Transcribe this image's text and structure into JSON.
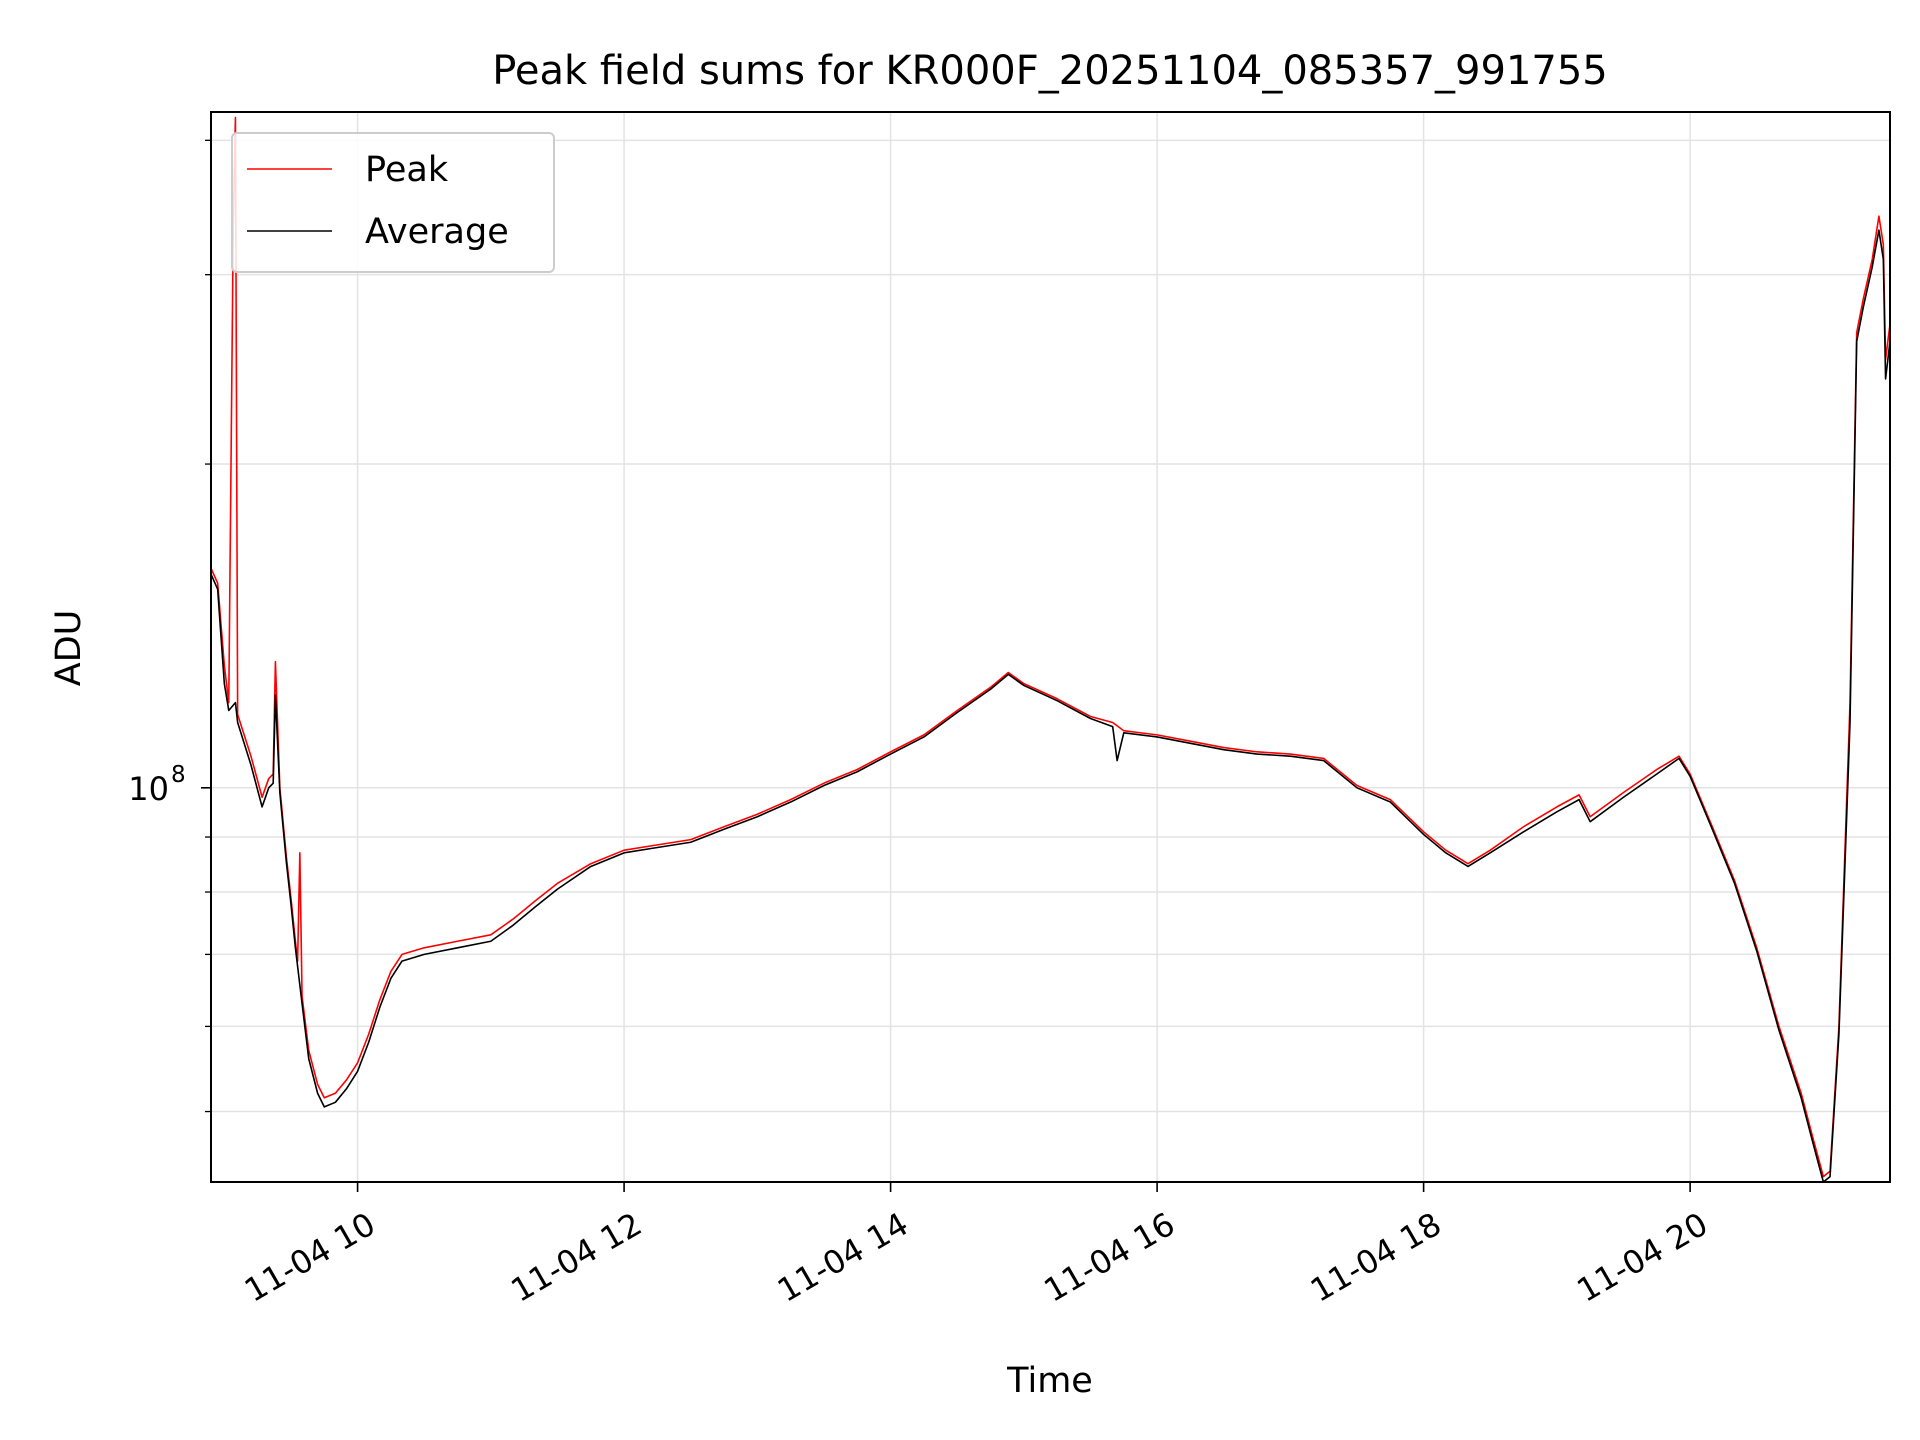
{
  "chart_data": {
    "type": "line",
    "title": "Peak field sums for KR000F_20251104_085357_991755",
    "xlabel": "Time",
    "ylabel": "ADU",
    "yscale": "log",
    "ylim": [
      43000000.0,
      425000000.0
    ],
    "xlim": [
      "2025-11-04 08:54",
      "2025-11-04 21:30"
    ],
    "grid": true,
    "legend": {
      "placement": "top-left",
      "entries": [
        "Peak",
        "Average"
      ]
    },
    "x_ticks": [
      {
        "value": "2025-11-04 10:00",
        "label": "11-04 10"
      },
      {
        "value": "2025-11-04 12:00",
        "label": "11-04 12"
      },
      {
        "value": "2025-11-04 14:00",
        "label": "11-04 14"
      },
      {
        "value": "2025-11-04 16:00",
        "label": "11-04 16"
      },
      {
        "value": "2025-11-04 18:00",
        "label": "11-04 18"
      },
      {
        "value": "2025-11-04 20:00",
        "label": "11-04 20"
      }
    ],
    "y_major_ticks": [
      {
        "value": 100000000,
        "label": "10",
        "exponent": "8"
      }
    ],
    "y_minor_ticks": [
      50000000,
      60000000,
      70000000,
      80000000,
      90000000,
      200000000,
      300000000,
      400000000
    ],
    "series": [
      {
        "name": "Peak",
        "color": "#ff0000",
        "points": [
          [
            "2025-11-04 08:54",
            160000000.0
          ],
          [
            "2025-11-04 08:57",
            155000000.0
          ],
          [
            "2025-11-04 09:00",
            130000000.0
          ],
          [
            "2025-11-04 09:02",
            120000000.0
          ],
          [
            "2025-11-04 09:04",
            330000000.0
          ],
          [
            "2025-11-04 09:05",
            420000000.0
          ],
          [
            "2025-11-04 09:06",
            117000000.0
          ],
          [
            "2025-11-04 09:12",
            107000000.0
          ],
          [
            "2025-11-04 09:17",
            98000000.0
          ],
          [
            "2025-11-04 09:20",
            102000000.0
          ],
          [
            "2025-11-04 09:22",
            103000000.0
          ],
          [
            "2025-11-04 09:23",
            131000000.0
          ],
          [
            "2025-11-04 09:25",
            100000000.0
          ],
          [
            "2025-11-04 09:28",
            86000000.0
          ],
          [
            "2025-11-04 09:30",
            79000000.0
          ],
          [
            "2025-11-04 09:32",
            72000000.0
          ],
          [
            "2025-11-04 09:33",
            69000000.0
          ],
          [
            "2025-11-04 09:34",
            87000000.0
          ],
          [
            "2025-11-04 09:35",
            64000000.0
          ],
          [
            "2025-11-04 09:38",
            57000000.0
          ],
          [
            "2025-11-04 09:42",
            53000000.0
          ],
          [
            "2025-11-04 09:45",
            51500000.0
          ],
          [
            "2025-11-04 09:50",
            52000000.0
          ],
          [
            "2025-11-04 09:55",
            53500000.0
          ],
          [
            "2025-11-04 10:00",
            55500000.0
          ],
          [
            "2025-11-04 10:05",
            59000000.0
          ],
          [
            "2025-11-04 10:10",
            63500000.0
          ],
          [
            "2025-11-04 10:15",
            67500000.0
          ],
          [
            "2025-11-04 10:20",
            70000000.0
          ],
          [
            "2025-11-04 10:30",
            71000000.0
          ],
          [
            "2025-11-04 10:45",
            72000000.0
          ],
          [
            "2025-11-04 11:00",
            73000000.0
          ],
          [
            "2025-11-04 11:10",
            75500000.0
          ],
          [
            "2025-11-04 11:20",
            78500000.0
          ],
          [
            "2025-11-04 11:30",
            81500000.0
          ],
          [
            "2025-11-04 11:45",
            85000000.0
          ],
          [
            "2025-11-04 12:00",
            87500000.0
          ],
          [
            "2025-11-04 12:15",
            88500000.0
          ],
          [
            "2025-11-04 12:30",
            89500000.0
          ],
          [
            "2025-11-04 12:45",
            92000000.0
          ],
          [
            "2025-11-04 13:00",
            94500000.0
          ],
          [
            "2025-11-04 13:15",
            97500000.0
          ],
          [
            "2025-11-04 13:30",
            101000000.0
          ],
          [
            "2025-11-04 13:45",
            104000000.0
          ],
          [
            "2025-11-04 14:00",
            108000000.0
          ],
          [
            "2025-11-04 14:15",
            112000000.0
          ],
          [
            "2025-11-04 14:30",
            118000000.0
          ],
          [
            "2025-11-04 14:45",
            124000000.0
          ],
          [
            "2025-11-04 14:53",
            128000000.0
          ],
          [
            "2025-11-04 15:00",
            125000000.0
          ],
          [
            "2025-11-04 15:15",
            121000000.0
          ],
          [
            "2025-11-04 15:30",
            116500000.0
          ],
          [
            "2025-11-04 15:40",
            115000000.0
          ],
          [
            "2025-11-04 15:45",
            113000000.0
          ],
          [
            "2025-11-04 16:00",
            112000000.0
          ],
          [
            "2025-11-04 16:15",
            110500000.0
          ],
          [
            "2025-11-04 16:30",
            109000000.0
          ],
          [
            "2025-11-04 16:45",
            108000000.0
          ],
          [
            "2025-11-04 17:00",
            107500000.0
          ],
          [
            "2025-11-04 17:15",
            106500000.0
          ],
          [
            "2025-11-04 17:30",
            100500000.0
          ],
          [
            "2025-11-04 17:45",
            97500000.0
          ],
          [
            "2025-11-04 18:00",
            91000000.0
          ],
          [
            "2025-11-04 18:10",
            87500000.0
          ],
          [
            "2025-11-04 18:20",
            85000000.0
          ],
          [
            "2025-11-04 18:30",
            87500000.0
          ],
          [
            "2025-11-04 18:45",
            92000000.0
          ],
          [
            "2025-11-04 19:00",
            96000000.0
          ],
          [
            "2025-11-04 19:10",
            98500000.0
          ],
          [
            "2025-11-04 19:15",
            94000000.0
          ],
          [
            "2025-11-04 19:30",
            99000000.0
          ],
          [
            "2025-11-04 19:45",
            104000000.0
          ],
          [
            "2025-11-04 19:55",
            107000000.0
          ],
          [
            "2025-11-04 20:00",
            103000000.0
          ],
          [
            "2025-11-04 20:10",
            92000000.0
          ],
          [
            "2025-11-04 20:20",
            82000000.0
          ],
          [
            "2025-11-04 20:30",
            71000000.0
          ],
          [
            "2025-11-04 20:40",
            60000000.0
          ],
          [
            "2025-11-04 20:50",
            52000000.0
          ],
          [
            "2025-11-04 20:55",
            47500000.0
          ],
          [
            "2025-11-04 21:00",
            43500000.0
          ],
          [
            "2025-11-04 21:03",
            44000000.0
          ],
          [
            "2025-11-04 21:07",
            60000000.0
          ],
          [
            "2025-11-04 21:12",
            120000000.0
          ],
          [
            "2025-11-04 21:15",
            265000000.0
          ],
          [
            "2025-11-04 21:18",
            285000000.0
          ],
          [
            "2025-11-04 21:22",
            310000000.0
          ],
          [
            "2025-11-04 21:25",
            340000000.0
          ],
          [
            "2025-11-04 21:27",
            320000000.0
          ],
          [
            "2025-11-04 21:28",
            250000000.0
          ],
          [
            "2025-11-04 21:30",
            270000000.0
          ]
        ]
      },
      {
        "name": "Average",
        "color": "#000000",
        "points": [
          [
            "2025-11-04 08:54",
            158000000.0
          ],
          [
            "2025-11-04 08:57",
            153000000.0
          ],
          [
            "2025-11-04 09:00",
            125000000.0
          ],
          [
            "2025-11-04 09:02",
            118000000.0
          ],
          [
            "2025-11-04 09:05",
            120000000.0
          ],
          [
            "2025-11-04 09:06",
            115000000.0
          ],
          [
            "2025-11-04 09:12",
            105000000.0
          ],
          [
            "2025-11-04 09:17",
            96000000.0
          ],
          [
            "2025-11-04 09:20",
            100000000.0
          ],
          [
            "2025-11-04 09:22",
            101000000.0
          ],
          [
            "2025-11-04 09:23",
            122000000.0
          ],
          [
            "2025-11-04 09:25",
            99000000.0
          ],
          [
            "2025-11-04 09:28",
            85000000.0
          ],
          [
            "2025-11-04 09:30",
            78000000.0
          ],
          [
            "2025-11-04 09:32",
            71000000.0
          ],
          [
            "2025-11-04 09:35",
            63000000.0
          ],
          [
            "2025-11-04 09:38",
            56000000.0
          ],
          [
            "2025-11-04 09:42",
            52000000.0
          ],
          [
            "2025-11-04 09:45",
            50500000.0
          ],
          [
            "2025-11-04 09:50",
            51000000.0
          ],
          [
            "2025-11-04 09:55",
            52500000.0
          ],
          [
            "2025-11-04 10:00",
            54500000.0
          ],
          [
            "2025-11-04 10:05",
            58000000.0
          ],
          [
            "2025-11-04 10:10",
            62500000.0
          ],
          [
            "2025-11-04 10:15",
            66500000.0
          ],
          [
            "2025-11-04 10:20",
            69000000.0
          ],
          [
            "2025-11-04 10:30",
            70000000.0
          ],
          [
            "2025-11-04 10:45",
            71000000.0
          ],
          [
            "2025-11-04 11:00",
            72000000.0
          ],
          [
            "2025-11-04 11:10",
            74500000.0
          ],
          [
            "2025-11-04 11:20",
            77500000.0
          ],
          [
            "2025-11-04 11:30",
            80500000.0
          ],
          [
            "2025-11-04 11:45",
            84500000.0
          ],
          [
            "2025-11-04 12:00",
            87000000.0
          ],
          [
            "2025-11-04 12:15",
            88000000.0
          ],
          [
            "2025-11-04 12:30",
            89000000.0
          ],
          [
            "2025-11-04 12:45",
            91500000.0
          ],
          [
            "2025-11-04 13:00",
            94000000.0
          ],
          [
            "2025-11-04 13:15",
            97000000.0
          ],
          [
            "2025-11-04 13:30",
            100500000.0
          ],
          [
            "2025-11-04 13:45",
            103500000.0
          ],
          [
            "2025-11-04 14:00",
            107500000.0
          ],
          [
            "2025-11-04 14:15",
            111500000.0
          ],
          [
            "2025-11-04 14:30",
            117500000.0
          ],
          [
            "2025-11-04 14:45",
            123500000.0
          ],
          [
            "2025-11-04 14:53",
            127500000.0
          ],
          [
            "2025-11-04 15:00",
            124500000.0
          ],
          [
            "2025-11-04 15:15",
            120500000.0
          ],
          [
            "2025-11-04 15:30",
            116000000.0
          ],
          [
            "2025-11-04 15:40",
            114000000.0
          ],
          [
            "2025-11-04 15:42",
            106000000.0
          ],
          [
            "2025-11-04 15:45",
            112500000.0
          ],
          [
            "2025-11-04 16:00",
            111500000.0
          ],
          [
            "2025-11-04 16:15",
            110000000.0
          ],
          [
            "2025-11-04 16:30",
            108500000.0
          ],
          [
            "2025-11-04 16:45",
            107500000.0
          ],
          [
            "2025-11-04 17:00",
            107000000.0
          ],
          [
            "2025-11-04 17:15",
            106000000.0
          ],
          [
            "2025-11-04 17:30",
            100000000.0
          ],
          [
            "2025-11-04 17:45",
            97000000.0
          ],
          [
            "2025-11-04 18:00",
            90500000.0
          ],
          [
            "2025-11-04 18:10",
            87000000.0
          ],
          [
            "2025-11-04 18:20",
            84500000.0
          ],
          [
            "2025-11-04 18:30",
            87000000.0
          ],
          [
            "2025-11-04 18:45",
            91000000.0
          ],
          [
            "2025-11-04 19:00",
            95000000.0
          ],
          [
            "2025-11-04 19:10",
            97500000.0
          ],
          [
            "2025-11-04 19:15",
            93000000.0
          ],
          [
            "2025-11-04 19:30",
            98000000.0
          ],
          [
            "2025-11-04 19:45",
            103000000.0
          ],
          [
            "2025-11-04 19:55",
            106500000.0
          ],
          [
            "2025-11-04 20:00",
            102500000.0
          ],
          [
            "2025-11-04 20:10",
            91500000.0
          ],
          [
            "2025-11-04 20:20",
            81500000.0
          ],
          [
            "2025-11-04 20:30",
            70500000.0
          ],
          [
            "2025-11-04 20:40",
            59500000.0
          ],
          [
            "2025-11-04 20:50",
            51500000.0
          ],
          [
            "2025-11-04 20:55",
            47000000.0
          ],
          [
            "2025-11-04 21:00",
            43000000.0
          ],
          [
            "2025-11-04 21:03",
            43500000.0
          ],
          [
            "2025-11-04 21:07",
            59000000.0
          ],
          [
            "2025-11-04 21:12",
            115000000.0
          ],
          [
            "2025-11-04 21:15",
            260000000.0
          ],
          [
            "2025-11-04 21:18",
            280000000.0
          ],
          [
            "2025-11-04 21:22",
            305000000.0
          ],
          [
            "2025-11-04 21:25",
            330000000.0
          ],
          [
            "2025-11-04 21:27",
            310000000.0
          ],
          [
            "2025-11-04 21:28",
            240000000.0
          ],
          [
            "2025-11-04 21:30",
            260000000.0
          ]
        ]
      }
    ]
  }
}
